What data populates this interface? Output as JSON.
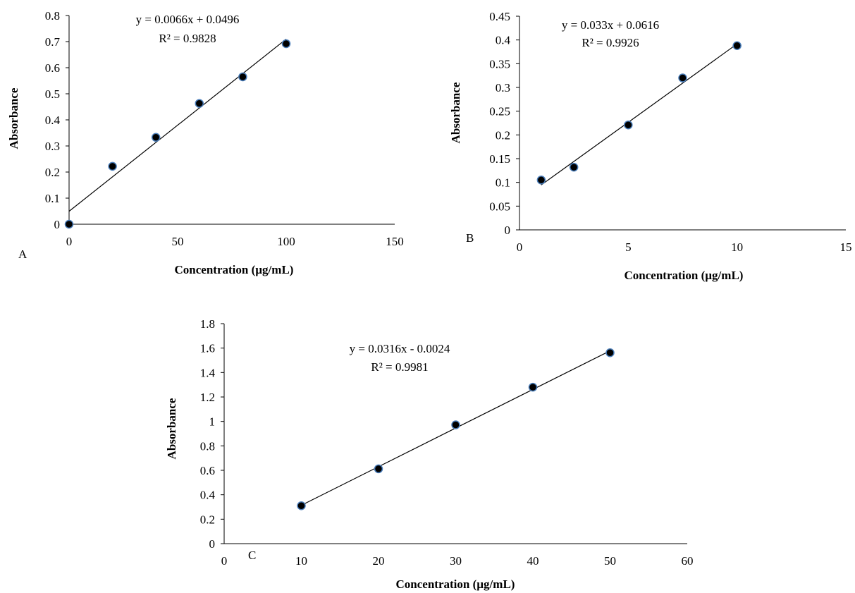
{
  "chart_data": [
    {
      "type": "scatter",
      "panel_label": "A",
      "xlabel": "Concentration (µg/mL)",
      "ylabel": "Absorbance",
      "xlim": [
        0,
        150
      ],
      "ylim": [
        0,
        0.8
      ],
      "xticks": [
        0,
        50,
        100,
        150
      ],
      "yticks": [
        0,
        0.1,
        0.2,
        0.3,
        0.4,
        0.5,
        0.6,
        0.7,
        0.8
      ],
      "grid": false,
      "points": {
        "x": [
          0,
          20,
          40,
          60,
          80,
          100
        ],
        "y": [
          0,
          0.222,
          0.333,
          0.463,
          0.565,
          0.692
        ]
      },
      "trendline": {
        "slope": 0.0066,
        "intercept": 0.0496,
        "x_range": [
          0,
          100
        ]
      },
      "equation": "y = 0.0066x + 0.0496",
      "r_squared": "R² = 0.9828"
    },
    {
      "type": "scatter",
      "panel_label": "B",
      "xlabel": "Concentration (µg/mL)",
      "ylabel": "Absorbance",
      "xlim": [
        0,
        15
      ],
      "ylim": [
        0,
        0.45
      ],
      "xticks": [
        0,
        5,
        10,
        15
      ],
      "yticks": [
        0,
        0.05,
        0.1,
        0.15,
        0.2,
        0.25,
        0.3,
        0.35,
        0.4,
        0.45
      ],
      "grid": false,
      "points": {
        "x": [
          1,
          2.5,
          5,
          7.5,
          10
        ],
        "y": [
          0.105,
          0.132,
          0.221,
          0.32,
          0.388
        ]
      },
      "trendline": {
        "slope": 0.033,
        "intercept": 0.0616,
        "x_range": [
          1,
          10
        ]
      },
      "equation": "y = 0.033x + 0.0616",
      "r_squared": "R² = 0.9926"
    },
    {
      "type": "scatter",
      "panel_label": "C",
      "xlabel": "Concentration (µg/mL)",
      "ylabel": "Absorbance",
      "xlim": [
        0,
        60
      ],
      "ylim": [
        0,
        1.8
      ],
      "xticks": [
        0,
        10,
        20,
        30,
        40,
        50,
        60
      ],
      "yticks": [
        0,
        0.2,
        0.4,
        0.6,
        0.8,
        1,
        1.2,
        1.4,
        1.6,
        1.8
      ],
      "grid": false,
      "points": {
        "x": [
          10,
          20,
          30,
          40,
          50
        ],
        "y": [
          0.31,
          0.612,
          0.972,
          1.28,
          1.562
        ]
      },
      "trendline": {
        "slope": 0.0316,
        "intercept": -0.0024,
        "x_range": [
          10,
          50
        ]
      },
      "equation": "y = 0.0316x - 0.0024",
      "r_squared": "R² = 0.9981"
    }
  ]
}
